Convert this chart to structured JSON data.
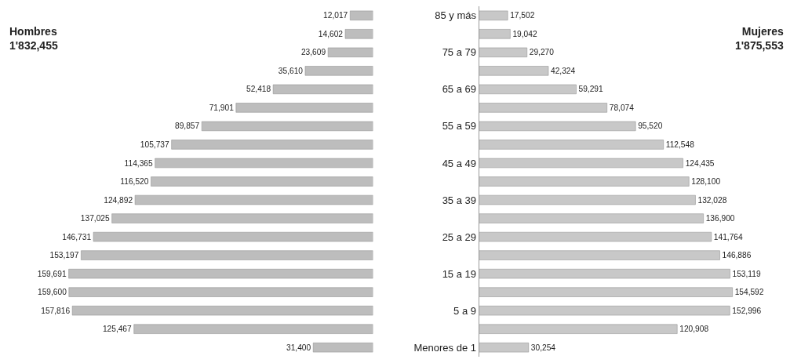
{
  "chart_data": [
    {
      "type": "bar",
      "orientation": "horizontal",
      "values": [
        12017,
        14602,
        23609,
        35610,
        52418,
        71901,
        89857,
        105737,
        114365,
        116520,
        124892,
        137025,
        146731,
        153197,
        159691,
        159600,
        157816,
        125467,
        31400
      ],
      "value_labels": [
        "12,017",
        "14,602",
        "23,609",
        "35,610",
        "52,418",
        "71,901",
        "89,857",
        "105,737",
        "114,365",
        "116,520",
        "124,892",
        "137,025",
        "146,731",
        "153,197",
        "159,691",
        "159,600",
        "157,816",
        "125,467",
        "31,400"
      ],
      "color": "#bdbdbd",
      "tick_labels": false,
      "annotations": [
        "Hombres\n1'832,455"
      ]
    },
    {
      "type": "bar",
      "orientation": "horizontal",
      "categories": [
        "85 y más",
        null,
        "75 a 79",
        null,
        "65 a 69",
        null,
        "55 a 59",
        null,
        "45 a 49",
        null,
        "35 a 39",
        null,
        "25 a 29",
        null,
        "15 a 19",
        null,
        "5 a 9",
        null,
        "Menores de 1"
      ],
      "values": [
        17502,
        19042,
        29270,
        42324,
        59291,
        78074,
        95520,
        112548,
        124435,
        128100,
        132028,
        136900,
        141764,
        146886,
        153119,
        154592,
        152996,
        120908,
        30254
      ],
      "value_labels": [
        "17,502",
        "19,042",
        "29,270",
        "42,324",
        "59,291",
        "78,074",
        "95,520",
        "112,548",
        "124,435",
        "128,100",
        "132,028",
        "136,900",
        "141,764",
        "146,886",
        "153,119",
        "154,592",
        "152,996",
        "120,908",
        "30,254"
      ],
      "color": "#c8c8c8",
      "tick_labels": "y",
      "annotations": [
        "Mujeres\n1'875,553"
      ]
    }
  ]
}
